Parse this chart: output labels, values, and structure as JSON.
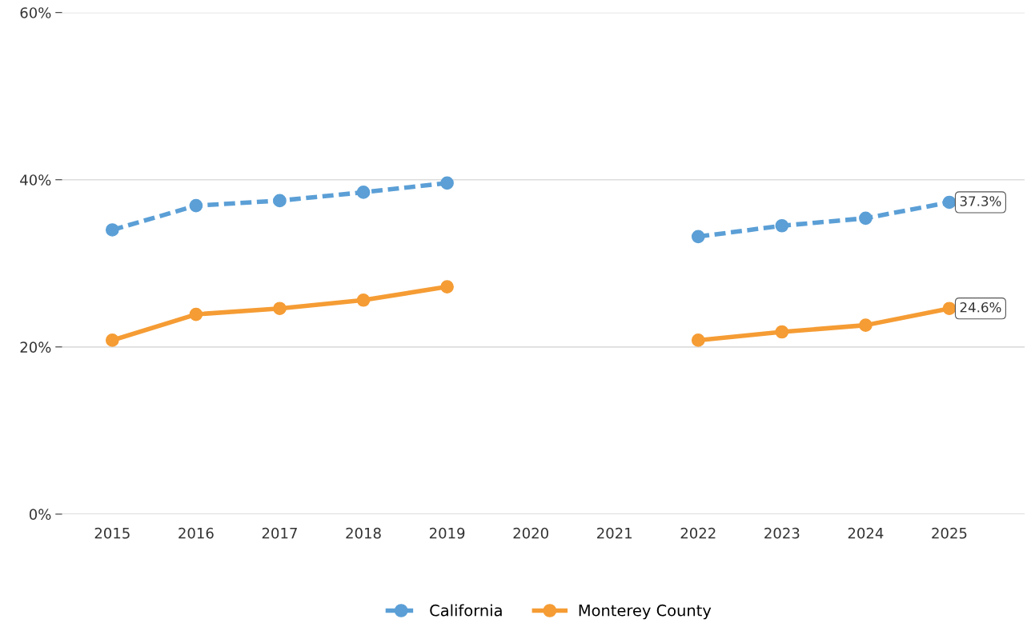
{
  "chart_data": {
    "type": "line",
    "categories": [
      "2015",
      "2016",
      "2017",
      "2018",
      "2019",
      "2020",
      "2021",
      "2022",
      "2023",
      "2024",
      "2025"
    ],
    "series": [
      {
        "name": "California",
        "color": "#5b9fd6",
        "line_style": "dashed",
        "values": [
          34.0,
          36.9,
          37.5,
          38.5,
          39.6,
          null,
          null,
          33.2,
          34.5,
          35.4,
          37.3
        ],
        "value_labels": [
          null,
          null,
          null,
          null,
          null,
          null,
          null,
          null,
          null,
          null,
          "37.3%"
        ]
      },
      {
        "name": "Monterey County",
        "color": "#f59c34",
        "line_style": "solid",
        "values": [
          20.8,
          23.9,
          24.6,
          25.6,
          27.2,
          null,
          null,
          20.8,
          21.8,
          22.6,
          24.6
        ],
        "value_labels": [
          null,
          null,
          null,
          null,
          null,
          null,
          null,
          null,
          null,
          null,
          "24.6%"
        ]
      }
    ],
    "ylim": [
      0,
      60
    ],
    "yticks": [
      {
        "value": 0,
        "label": "0%"
      },
      {
        "value": 20,
        "label": "20%"
      },
      {
        "value": 40,
        "label": "40%"
      },
      {
        "value": 60,
        "label": "60%"
      }
    ],
    "grid": "y",
    "legend": "bottom",
    "marker": "circle"
  }
}
